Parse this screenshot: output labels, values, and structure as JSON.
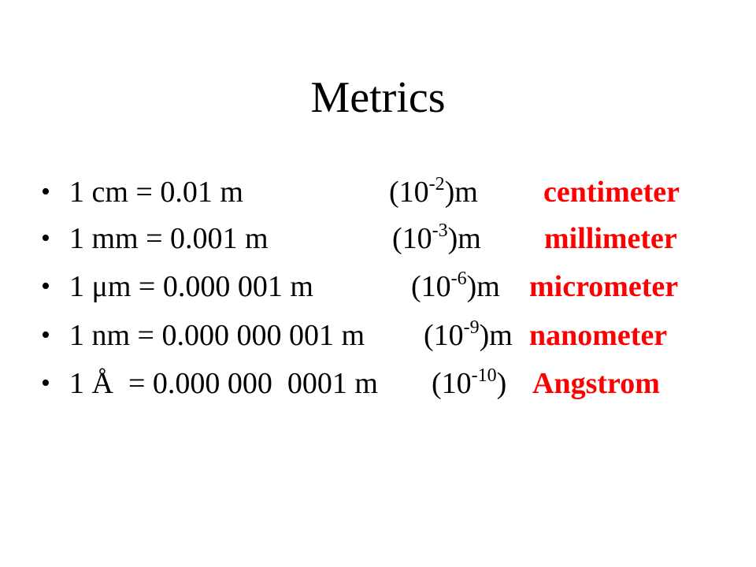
{
  "slide": {
    "title": "Metrics",
    "bullet_glyph": "•",
    "items": [
      {
        "equation": "1 cm = 0.01 m",
        "power_open": "(10",
        "exponent": "-2",
        "power_close": ")m",
        "unit_name": "centimeter"
      },
      {
        "equation": "1 mm = 0.001 m",
        "power_open": "(10",
        "exponent": "-3",
        "power_close": ")m",
        "unit_name": "millimeter"
      },
      {
        "equation": "1 μm = 0.000 001 m",
        "power_open": "(10",
        "exponent": "-6",
        "power_close": ")m",
        "unit_name": "micrometer"
      },
      {
        "equation": "1 nm = 0.000 000 001 m",
        "power_open": "(10",
        "exponent": "-9",
        "power_close": ")m",
        "unit_name": "nanometer"
      },
      {
        "equation": "1 Å  = 0.000 000  0001 m",
        "power_open": "(10",
        "exponent": "-10",
        "power_close": ")",
        "unit_name": "Angstrom"
      }
    ],
    "colors": {
      "text": "#000000",
      "unit_name": "#ff0000",
      "background": "#ffffff"
    }
  }
}
